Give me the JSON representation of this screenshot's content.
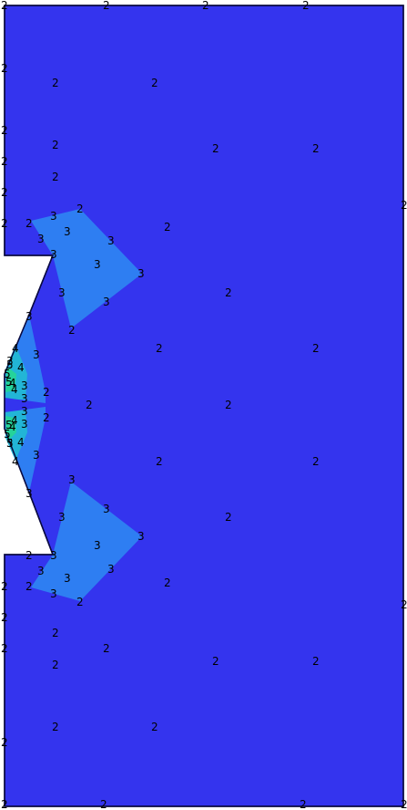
{
  "colors": {
    "background": "#ffffff",
    "level_2": "#3434ee",
    "level_3": "#2e7ef2",
    "level_4": "#22b5d6",
    "level_5": "#25d39a",
    "outline": "#0a0a40"
  },
  "labels": {
    "two": "2",
    "three": "3",
    "four": "4",
    "five": "5"
  }
}
